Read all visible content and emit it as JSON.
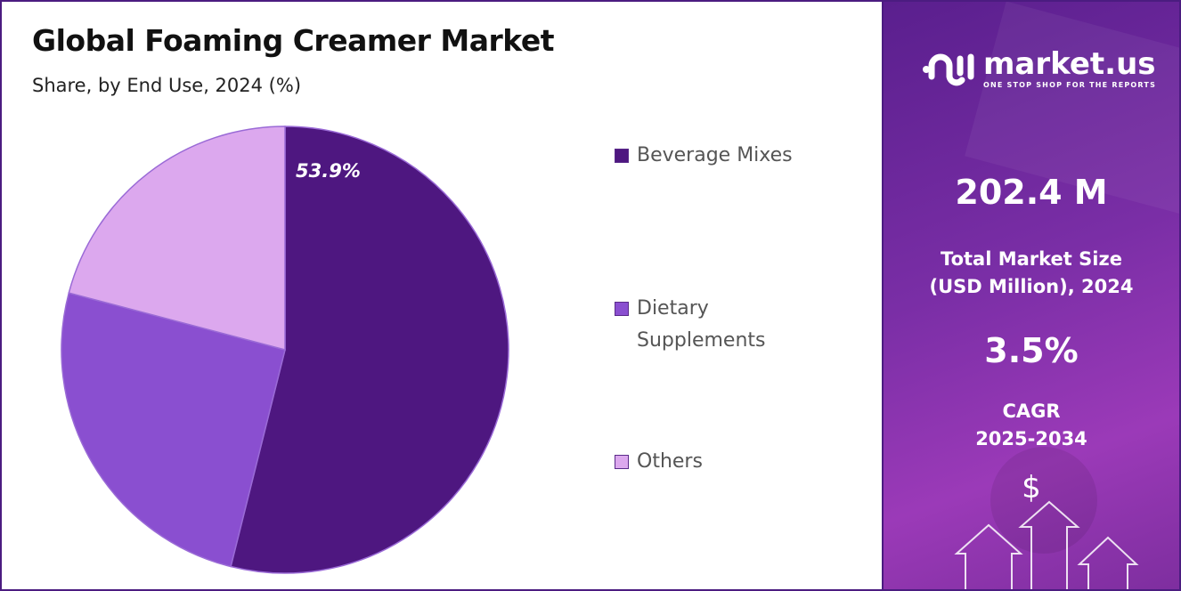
{
  "header": {
    "title": "Global Foaming Creamer Market",
    "subtitle": "Share, by End Use, 2024 (%)"
  },
  "chart_data": {
    "type": "pie",
    "title": "Global Foaming Creamer Market",
    "subtitle": "Share, by End Use, 2024 (%)",
    "categories": [
      "Beverage Mixes",
      "Dietary Supplements",
      "Others"
    ],
    "values": [
      53.9,
      25.2,
      20.9
    ],
    "colors": [
      "#4e1780",
      "#8a4fd0",
      "#dca8ee"
    ],
    "data_labels": [
      "53.9%",
      "",
      ""
    ],
    "legend_placement": "right"
  },
  "legend": [
    {
      "line1": "Beverage Mixes",
      "line2": ""
    },
    {
      "line1": "Dietary",
      "line2": "Supplements"
    },
    {
      "line1": "Others",
      "line2": ""
    }
  ],
  "panel": {
    "logo_word": "market.us",
    "logo_tagline": "ONE STOP SHOP FOR THE REPORTS",
    "market_size": "202.4 M",
    "market_size_label_1": "Total Market Size",
    "market_size_label_2": "(USD Million), 2024",
    "cagr": "3.5%",
    "cagr_label_1": "CAGR",
    "cagr_label_2": "2025-2034",
    "currency_symbol": "$"
  }
}
